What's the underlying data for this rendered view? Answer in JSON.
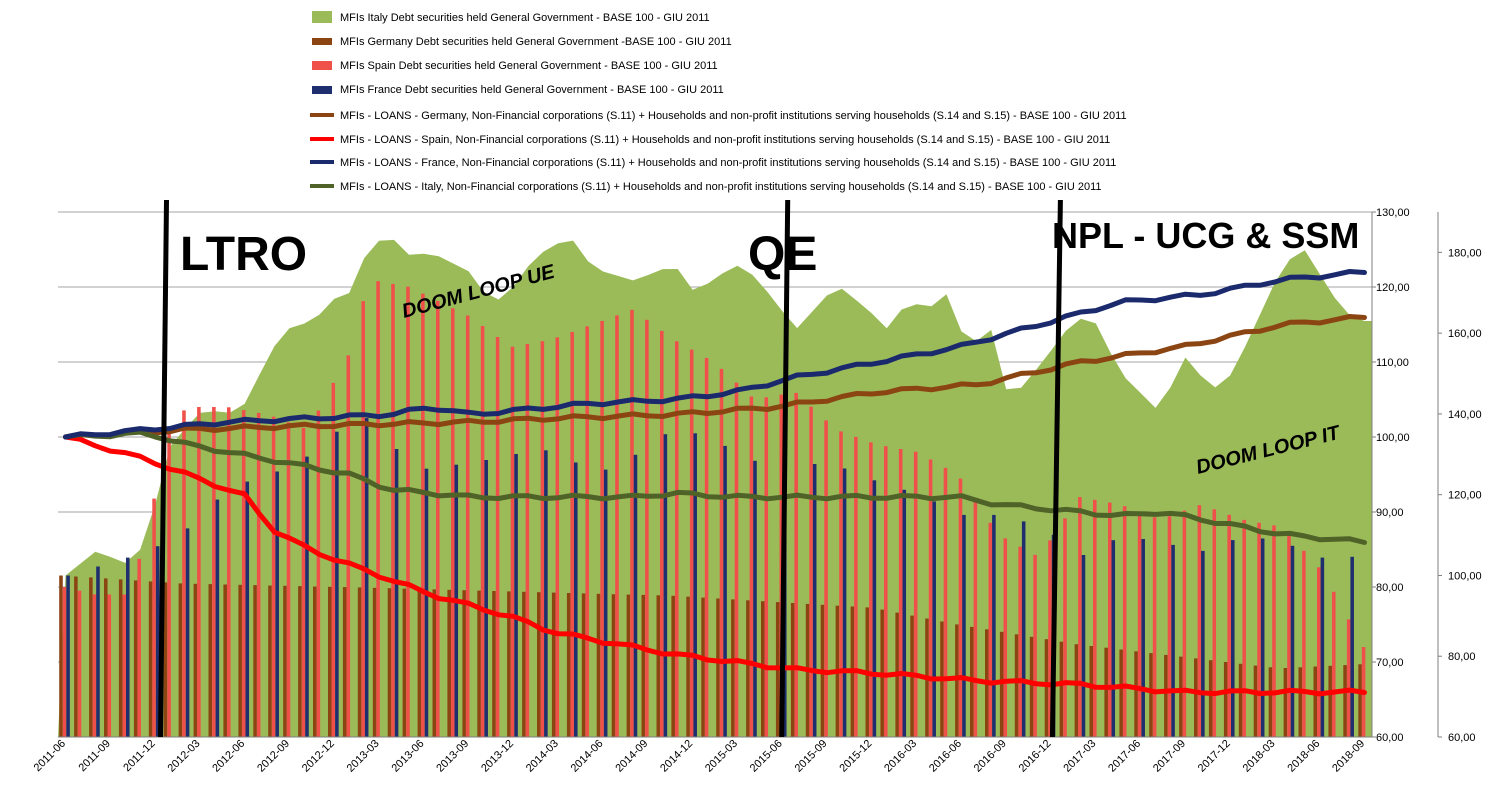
{
  "chart_data": {
    "type": "combo-bar-line-area",
    "title": "",
    "legend": [
      {
        "key": "italy_debt",
        "label": "MFIs Italy Debt securities held General Government - BASE 100 - GIU 2011",
        "kind": "area",
        "color": "#9BBB59"
      },
      {
        "key": "germany_debt",
        "label": "MFIs Germany Debt securities held General Government -BASE 100 - GIU 2011",
        "kind": "bar",
        "color": "#8B4513"
      },
      {
        "key": "spain_debt",
        "label": "MFIs Spain Debt securities held General Government - BASE 100 - GIU 2011",
        "kind": "bar",
        "color": "#F0504A"
      },
      {
        "key": "france_debt",
        "label": "MFIs France Debt securities held General Government - BASE 100 - GIU 2011",
        "kind": "bar",
        "color": "#1F2E6E"
      },
      {
        "key": "germany_loans",
        "label": "MFIs - LOANS - Germany, Non-Financial corporations (S.11) +  Households and non-profit institutions serving households (S.14 and S.15)  - BASE 100 - GIU 2011",
        "kind": "line",
        "color": "#8B4513"
      },
      {
        "key": "spain_loans",
        "label": "MFIs - LOANS - Spain, Non-Financial corporations (S.11) +  Households and non-profit institutions serving households (S.14 and S.15)  -  BASE 100 - GIU 2011",
        "kind": "line",
        "color": "#FF0000"
      },
      {
        "key": "france_loans",
        "label": "MFIs - LOANS - France, Non-Financial corporations (S.11) +  Households and non-profit institutions serving households (S.14 and S.15)  -  BASE 100 - GIU 2011",
        "kind": "line",
        "color": "#1A2A6C"
      },
      {
        "key": "italy_loans",
        "label": "MFIs - LOANS - Italy, Non-Financial corporations (S.11) +  Households and non-profit institutions serving households (S.14 and S.15)  -  BASE 100 - GIU 2011",
        "kind": "line",
        "color": "#4F6228"
      }
    ],
    "left_axis": {
      "min": 60,
      "max": 130,
      "ticks": [
        "60,00",
        "70,00",
        "80,00",
        "90,00",
        "100,00",
        "110,00",
        "120,00",
        "130,00"
      ]
    },
    "right_axis": {
      "min": 60,
      "max": 190,
      "ticks": [
        "60,00",
        "80,00",
        "100,00",
        "120,00",
        "140,00",
        "160,00",
        "180,00"
      ]
    },
    "x_tick_labels": [
      "2011-06",
      "2011-09",
      "2011-12",
      "2012-03",
      "2012-06",
      "2012-09",
      "2012-12",
      "2013-03",
      "2013-06",
      "2013-09",
      "2013-12",
      "2014-03",
      "2014-06",
      "2014-09",
      "2014-12",
      "2015-03",
      "2015-06",
      "2015-09",
      "2015-12",
      "2016-03",
      "2016-06",
      "2016-09",
      "2016-12",
      "2017-03",
      "2017-06",
      "2017-09",
      "2017-12",
      "2018-03",
      "2018-06",
      "2018-09"
    ],
    "x_tick_every_months": 3,
    "months_count": 88,
    "annotations": [
      {
        "text": "LTRO",
        "month_index": 7
      },
      {
        "text": "QE",
        "month_index": 49
      },
      {
        "text": "NPL - UCG & SSM",
        "month_index": 67
      },
      {
        "text": "DOOM LOOP UE"
      },
      {
        "text": "DOOM LOOP IT"
      }
    ],
    "series_anchors": {
      "italy_debt_right_axis": [
        [
          0,
          100
        ],
        [
          3,
          106
        ],
        [
          6,
          103
        ],
        [
          8,
          108
        ],
        [
          10,
          131
        ],
        [
          13,
          140
        ],
        [
          14,
          141
        ],
        [
          16,
          140
        ],
        [
          18,
          143
        ],
        [
          20,
          155
        ],
        [
          23,
          164
        ],
        [
          24,
          161
        ],
        [
          26,
          168
        ],
        [
          28,
          170
        ],
        [
          30,
          182
        ],
        [
          32,
          184
        ],
        [
          34,
          179
        ],
        [
          36,
          180
        ],
        [
          40,
          175
        ],
        [
          42,
          167
        ],
        [
          44,
          171
        ],
        [
          46,
          178
        ],
        [
          48,
          182
        ],
        [
          50,
          183
        ],
        [
          52,
          176
        ],
        [
          56,
          173
        ],
        [
          60,
          177
        ],
        [
          62,
          170
        ],
        [
          66,
          177
        ],
        [
          68,
          174
        ],
        [
          72,
          161
        ],
        [
          76,
          172
        ],
        [
          79,
          166
        ],
        [
          81,
          161
        ],
        [
          83,
          168
        ],
        [
          85,
          166
        ],
        [
          87,
          170
        ],
        [
          89,
          155
        ],
        [
          91,
          163
        ],
        [
          93,
          143
        ],
        [
          96,
          152
        ],
        [
          99,
          162
        ],
        [
          101,
          165
        ],
        [
          104,
          150
        ],
        [
          108,
          140
        ],
        [
          110,
          155
        ],
        [
          113,
          146
        ],
        [
          115,
          150
        ],
        [
          120,
          177
        ],
        [
          122,
          181
        ],
        [
          126,
          165
        ],
        [
          128,
          163
        ]
      ],
      "germany_debt_right_axis": [
        [
          0,
          100
        ],
        [
          12,
          98
        ],
        [
          30,
          97
        ],
        [
          60,
          95
        ],
        [
          80,
          92
        ],
        [
          88,
          88
        ],
        [
          100,
          83
        ],
        [
          120,
          77
        ],
        [
          128,
          78
        ]
      ],
      "spain_debt_left_axis": [
        [
          0,
          80
        ],
        [
          3,
          79
        ],
        [
          6,
          79
        ],
        [
          8,
          86
        ],
        [
          10,
          100
        ],
        [
          12,
          104
        ],
        [
          16,
          104
        ],
        [
          20,
          103
        ],
        [
          24,
          101
        ],
        [
          28,
          111
        ],
        [
          30,
          121
        ],
        [
          34,
          120
        ],
        [
          40,
          116
        ],
        [
          44,
          112
        ],
        [
          48,
          113
        ],
        [
          52,
          115
        ],
        [
          56,
          117
        ],
        [
          60,
          113
        ],
        [
          64,
          110
        ],
        [
          68,
          105
        ],
        [
          72,
          106
        ],
        [
          76,
          101
        ],
        [
          80,
          99
        ],
        [
          84,
          98
        ],
        [
          88,
          95
        ],
        [
          92,
          87
        ],
        [
          96,
          84
        ],
        [
          100,
          92
        ],
        [
          104,
          91
        ],
        [
          108,
          89
        ],
        [
          112,
          91
        ],
        [
          116,
          89
        ],
        [
          120,
          88
        ],
        [
          124,
          82
        ],
        [
          128,
          72
        ]
      ],
      "france_debt_right_axis": [
        [
          0,
          100
        ],
        [
          8,
          106
        ],
        [
          12,
          112
        ],
        [
          16,
          122
        ],
        [
          20,
          125
        ],
        [
          24,
          130
        ],
        [
          28,
          139
        ],
        [
          30,
          139
        ],
        [
          34,
          126
        ],
        [
          40,
          128
        ],
        [
          46,
          131
        ],
        [
          48,
          131
        ],
        [
          52,
          125
        ],
        [
          56,
          130
        ],
        [
          60,
          137
        ],
        [
          64,
          133
        ],
        [
          68,
          128
        ],
        [
          72,
          128
        ],
        [
          76,
          127
        ],
        [
          80,
          123
        ],
        [
          84,
          120
        ],
        [
          88,
          115
        ],
        [
          92,
          115
        ],
        [
          96,
          112
        ],
        [
          100,
          105
        ],
        [
          104,
          110
        ],
        [
          108,
          108
        ],
        [
          112,
          106
        ],
        [
          116,
          110
        ],
        [
          120,
          108
        ],
        [
          124,
          104
        ],
        [
          128,
          105
        ]
      ],
      "germany_loans_left_axis": [
        [
          0,
          100
        ],
        [
          12,
          101
        ],
        [
          24,
          101.5
        ],
        [
          40,
          102
        ],
        [
          48,
          102.5
        ],
        [
          60,
          103
        ],
        [
          70,
          104
        ],
        [
          80,
          106
        ],
        [
          90,
          107
        ],
        [
          100,
          110
        ],
        [
          110,
          112
        ],
        [
          120,
          115
        ],
        [
          128,
          116
        ]
      ],
      "spain_loans_left_axis": [
        [
          0,
          100
        ],
        [
          4,
          98.5
        ],
        [
          8,
          97
        ],
        [
          12,
          95
        ],
        [
          16,
          93
        ],
        [
          18,
          92
        ],
        [
          20,
          88
        ],
        [
          24,
          85
        ],
        [
          28,
          83
        ],
        [
          32,
          81
        ],
        [
          36,
          79
        ],
        [
          40,
          77.5
        ],
        [
          44,
          76
        ],
        [
          48,
          74
        ],
        [
          52,
          73
        ],
        [
          56,
          72
        ],
        [
          60,
          71
        ],
        [
          66,
          70
        ],
        [
          72,
          69
        ],
        [
          80,
          68.5
        ],
        [
          90,
          67.5
        ],
        [
          100,
          67
        ],
        [
          110,
          66
        ],
        [
          120,
          66
        ]
      ],
      "france_loans_left_axis": [
        [
          0,
          100
        ],
        [
          8,
          101
        ],
        [
          16,
          102
        ],
        [
          24,
          102.5
        ],
        [
          32,
          103
        ],
        [
          36,
          104
        ],
        [
          40,
          103
        ],
        [
          48,
          104
        ],
        [
          52,
          104.5
        ],
        [
          60,
          105
        ],
        [
          66,
          106
        ],
        [
          72,
          108
        ],
        [
          80,
          110
        ],
        [
          88,
          112
        ],
        [
          96,
          115
        ],
        [
          104,
          118
        ],
        [
          112,
          119
        ],
        [
          120,
          121
        ],
        [
          128,
          122
        ]
      ],
      "italy_loans_left_axis": [
        [
          0,
          100
        ],
        [
          8,
          100.5
        ],
        [
          12,
          99
        ],
        [
          16,
          98
        ],
        [
          20,
          97
        ],
        [
          24,
          96
        ],
        [
          28,
          95
        ],
        [
          32,
          93
        ],
        [
          36,
          92.5
        ],
        [
          40,
          92
        ],
        [
          48,
          92
        ],
        [
          56,
          92
        ],
        [
          60,
          92.5
        ],
        [
          66,
          92
        ],
        [
          72,
          92
        ],
        [
          80,
          92
        ],
        [
          88,
          92
        ],
        [
          92,
          91
        ],
        [
          100,
          90
        ],
        [
          104,
          89.5
        ],
        [
          108,
          90
        ],
        [
          112,
          89
        ],
        [
          116,
          88
        ],
        [
          120,
          87
        ],
        [
          128,
          86
        ]
      ]
    }
  }
}
